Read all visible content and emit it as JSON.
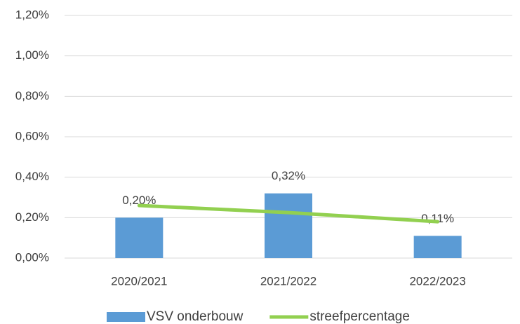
{
  "chart_data": {
    "type": "bar",
    "categories": [
      "2020/2021",
      "2021/2022",
      "2022/2023"
    ],
    "series": [
      {
        "name": "VSV onderbouw",
        "type": "bar",
        "color": "#5b9bd5",
        "values": [
          0.2,
          0.32,
          0.11
        ],
        "value_labels": [
          "0,20%",
          "0,32%",
          "0,11%"
        ]
      },
      {
        "name": "streefpercentage",
        "type": "line",
        "color": "#92d050",
        "values": [
          0.26,
          0.225,
          0.18
        ]
      }
    ],
    "ylim": [
      0,
      1.2
    ],
    "yticks": [
      {
        "value": 0,
        "label": "0,00%"
      },
      {
        "value": 0.2,
        "label": "0,20%"
      },
      {
        "value": 0.4,
        "label": "0,40%"
      },
      {
        "value": 0.6,
        "label": "0,60%"
      },
      {
        "value": 0.8,
        "label": "0,80%"
      },
      {
        "value": 1.0,
        "label": "1,00%"
      },
      {
        "value": 1.2,
        "label": "1,20%"
      }
    ],
    "grid": true,
    "legend": "bottom"
  }
}
